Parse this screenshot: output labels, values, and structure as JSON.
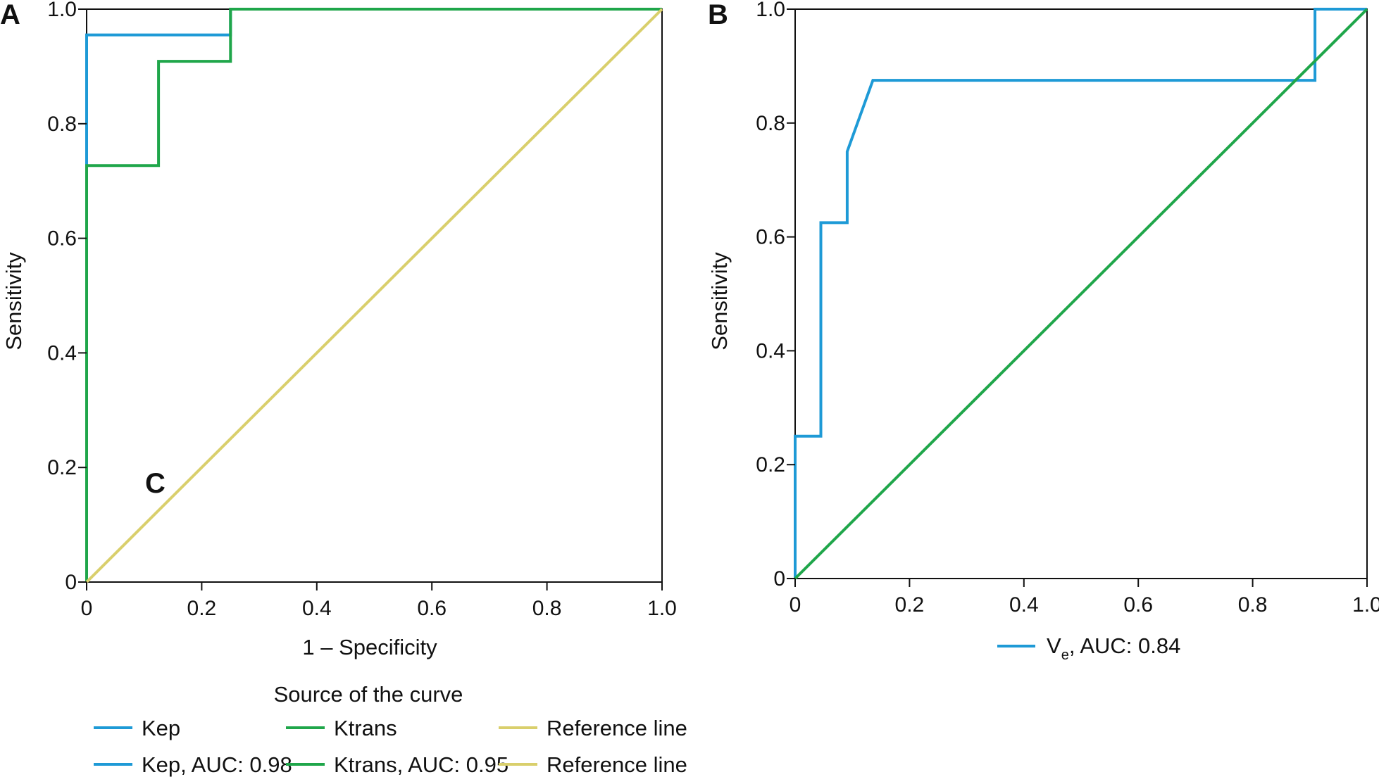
{
  "colors": {
    "kep": "#1e9ad6",
    "ktrans": "#1fa64a",
    "reference": "#d9cf6c",
    "axis": "#111111"
  },
  "chart_data": [
    {
      "type": "line",
      "panel_label": "A",
      "annotation": "C",
      "xlabel": "1 – Specificity",
      "ylabel": "Sensitivity",
      "xlim": [
        0,
        1
      ],
      "ylim": [
        0,
        1
      ],
      "xticks": [
        "0",
        "0.2",
        "0.4",
        "0.6",
        "0.8",
        "1.0"
      ],
      "yticks": [
        "0",
        "0.2",
        "0.4",
        "0.6",
        "0.8",
        "1.0"
      ],
      "grid": false,
      "legend_title": "Source of the curve",
      "legend": [
        {
          "label": "Kep",
          "color": "#1e9ad6"
        },
        {
          "label": "Ktrans",
          "color": "#1fa64a"
        },
        {
          "label": "Reference line",
          "color": "#d9cf6c"
        },
        {
          "label": "Kep, AUC: 0.98",
          "color": "#1e9ad6"
        },
        {
          "label": "Ktrans, AUC: 0.95",
          "color": "#1fa64a"
        },
        {
          "label": "Reference line",
          "color": "#d9cf6c"
        }
      ],
      "series": [
        {
          "name": "Kep",
          "color": "#1e9ad6",
          "x": [
            0,
            0,
            0,
            0.25,
            0.25,
            1.0
          ],
          "y": [
            0,
            0.73,
            0.955,
            0.955,
            1.0,
            1.0
          ]
        },
        {
          "name": "Ktrans",
          "color": "#1fa64a",
          "x": [
            0,
            0,
            0.125,
            0.125,
            0.25,
            0.25,
            1.0
          ],
          "y": [
            0,
            0.727,
            0.727,
            0.909,
            0.909,
            1.0,
            1.0
          ]
        },
        {
          "name": "Reference line",
          "color": "#d9cf6c",
          "x": [
            0,
            1.0
          ],
          "y": [
            0,
            1.0
          ]
        }
      ]
    },
    {
      "type": "line",
      "panel_label": "B",
      "xlabel": "",
      "ylabel": "Sensitivity",
      "xlim": [
        0,
        1
      ],
      "ylim": [
        0,
        1
      ],
      "xticks": [
        "0",
        "0.2",
        "0.4",
        "0.6",
        "0.8",
        "1.0"
      ],
      "yticks": [
        "0",
        "0.2",
        "0.4",
        "0.6",
        "0.8",
        "1.0"
      ],
      "grid": false,
      "legend": [
        {
          "label_main": "V",
          "label_sub": "e",
          "label_rest": ", AUC: 0.84",
          "color": "#1e9ad6"
        }
      ],
      "series": [
        {
          "name": "Ve",
          "color": "#1e9ad6",
          "x": [
            0,
            0,
            0.045,
            0.045,
            0.091,
            0.091,
            0.136,
            0.909,
            0.909,
            1.0
          ],
          "y": [
            0,
            0.25,
            0.25,
            0.625,
            0.625,
            0.75,
            0.875,
            0.875,
            1.0,
            1.0
          ]
        },
        {
          "name": "Reference",
          "color": "#1fa64a",
          "x": [
            0,
            1.0
          ],
          "y": [
            0,
            1.0
          ]
        }
      ]
    }
  ]
}
